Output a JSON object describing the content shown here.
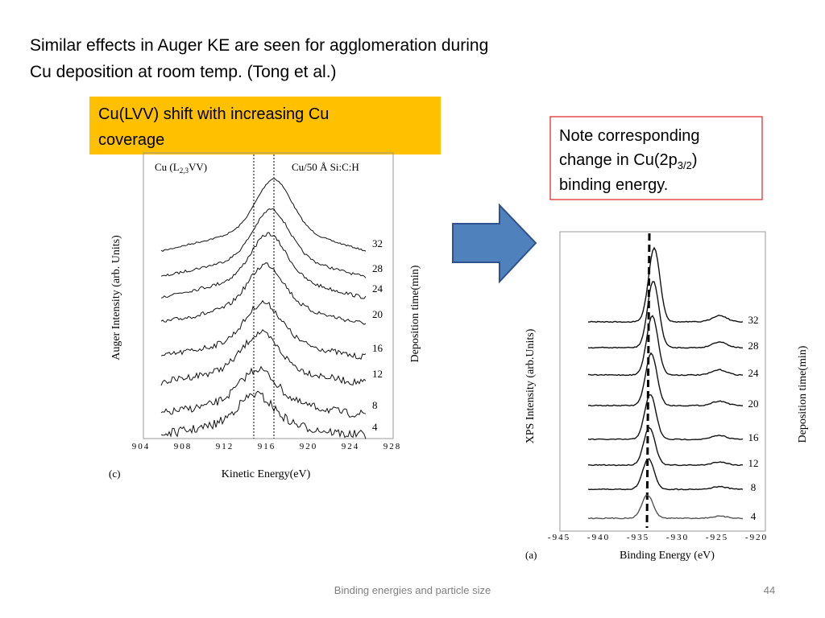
{
  "title_lines": [
    "Similar effects in Auger KE are seen for agglomeration during",
    "Cu deposition at room temp. (Tong et al.)"
  ],
  "callout_left": {
    "lines": [
      "Cu(LVV) shift with increasing Cu",
      "coverage"
    ]
  },
  "callout_right": {
    "line1": "Note corresponding",
    "line2_start": "change in Cu(2p",
    "line2_sub": "3/2",
    "line2_end": ")",
    "line3": "binding energy."
  },
  "figure_left": {
    "label_start": "Cu (L",
    "label_sub": "2,3",
    "label_end": "VV)",
    "sample": "Cu/50 Å Si:C:H",
    "y_label": "Auger Intensity (arb. Units)",
    "right_label": "Deposition time(min)",
    "x_label": "Kinetic Energy(eV)",
    "panel": "(c)",
    "x_ticks": [
      904,
      908,
      912,
      916,
      920,
      924,
      928
    ],
    "curve_labels": [
      32,
      28,
      24,
      20,
      16,
      12,
      8,
      4
    ]
  },
  "figure_right": {
    "y_label": "XPS Intensity (arb.Units)",
    "right_label": "Deposition time(min)",
    "x_label": "Binding Energy (eV)",
    "panel": "(a)",
    "x_ticks": [
      -945,
      -940,
      -935,
      -930,
      -925,
      -920
    ],
    "curve_labels": [
      32,
      28,
      24,
      20,
      16,
      12,
      8,
      4
    ]
  },
  "footer": {
    "text": "Binding energies and particle size",
    "page": 44
  }
}
